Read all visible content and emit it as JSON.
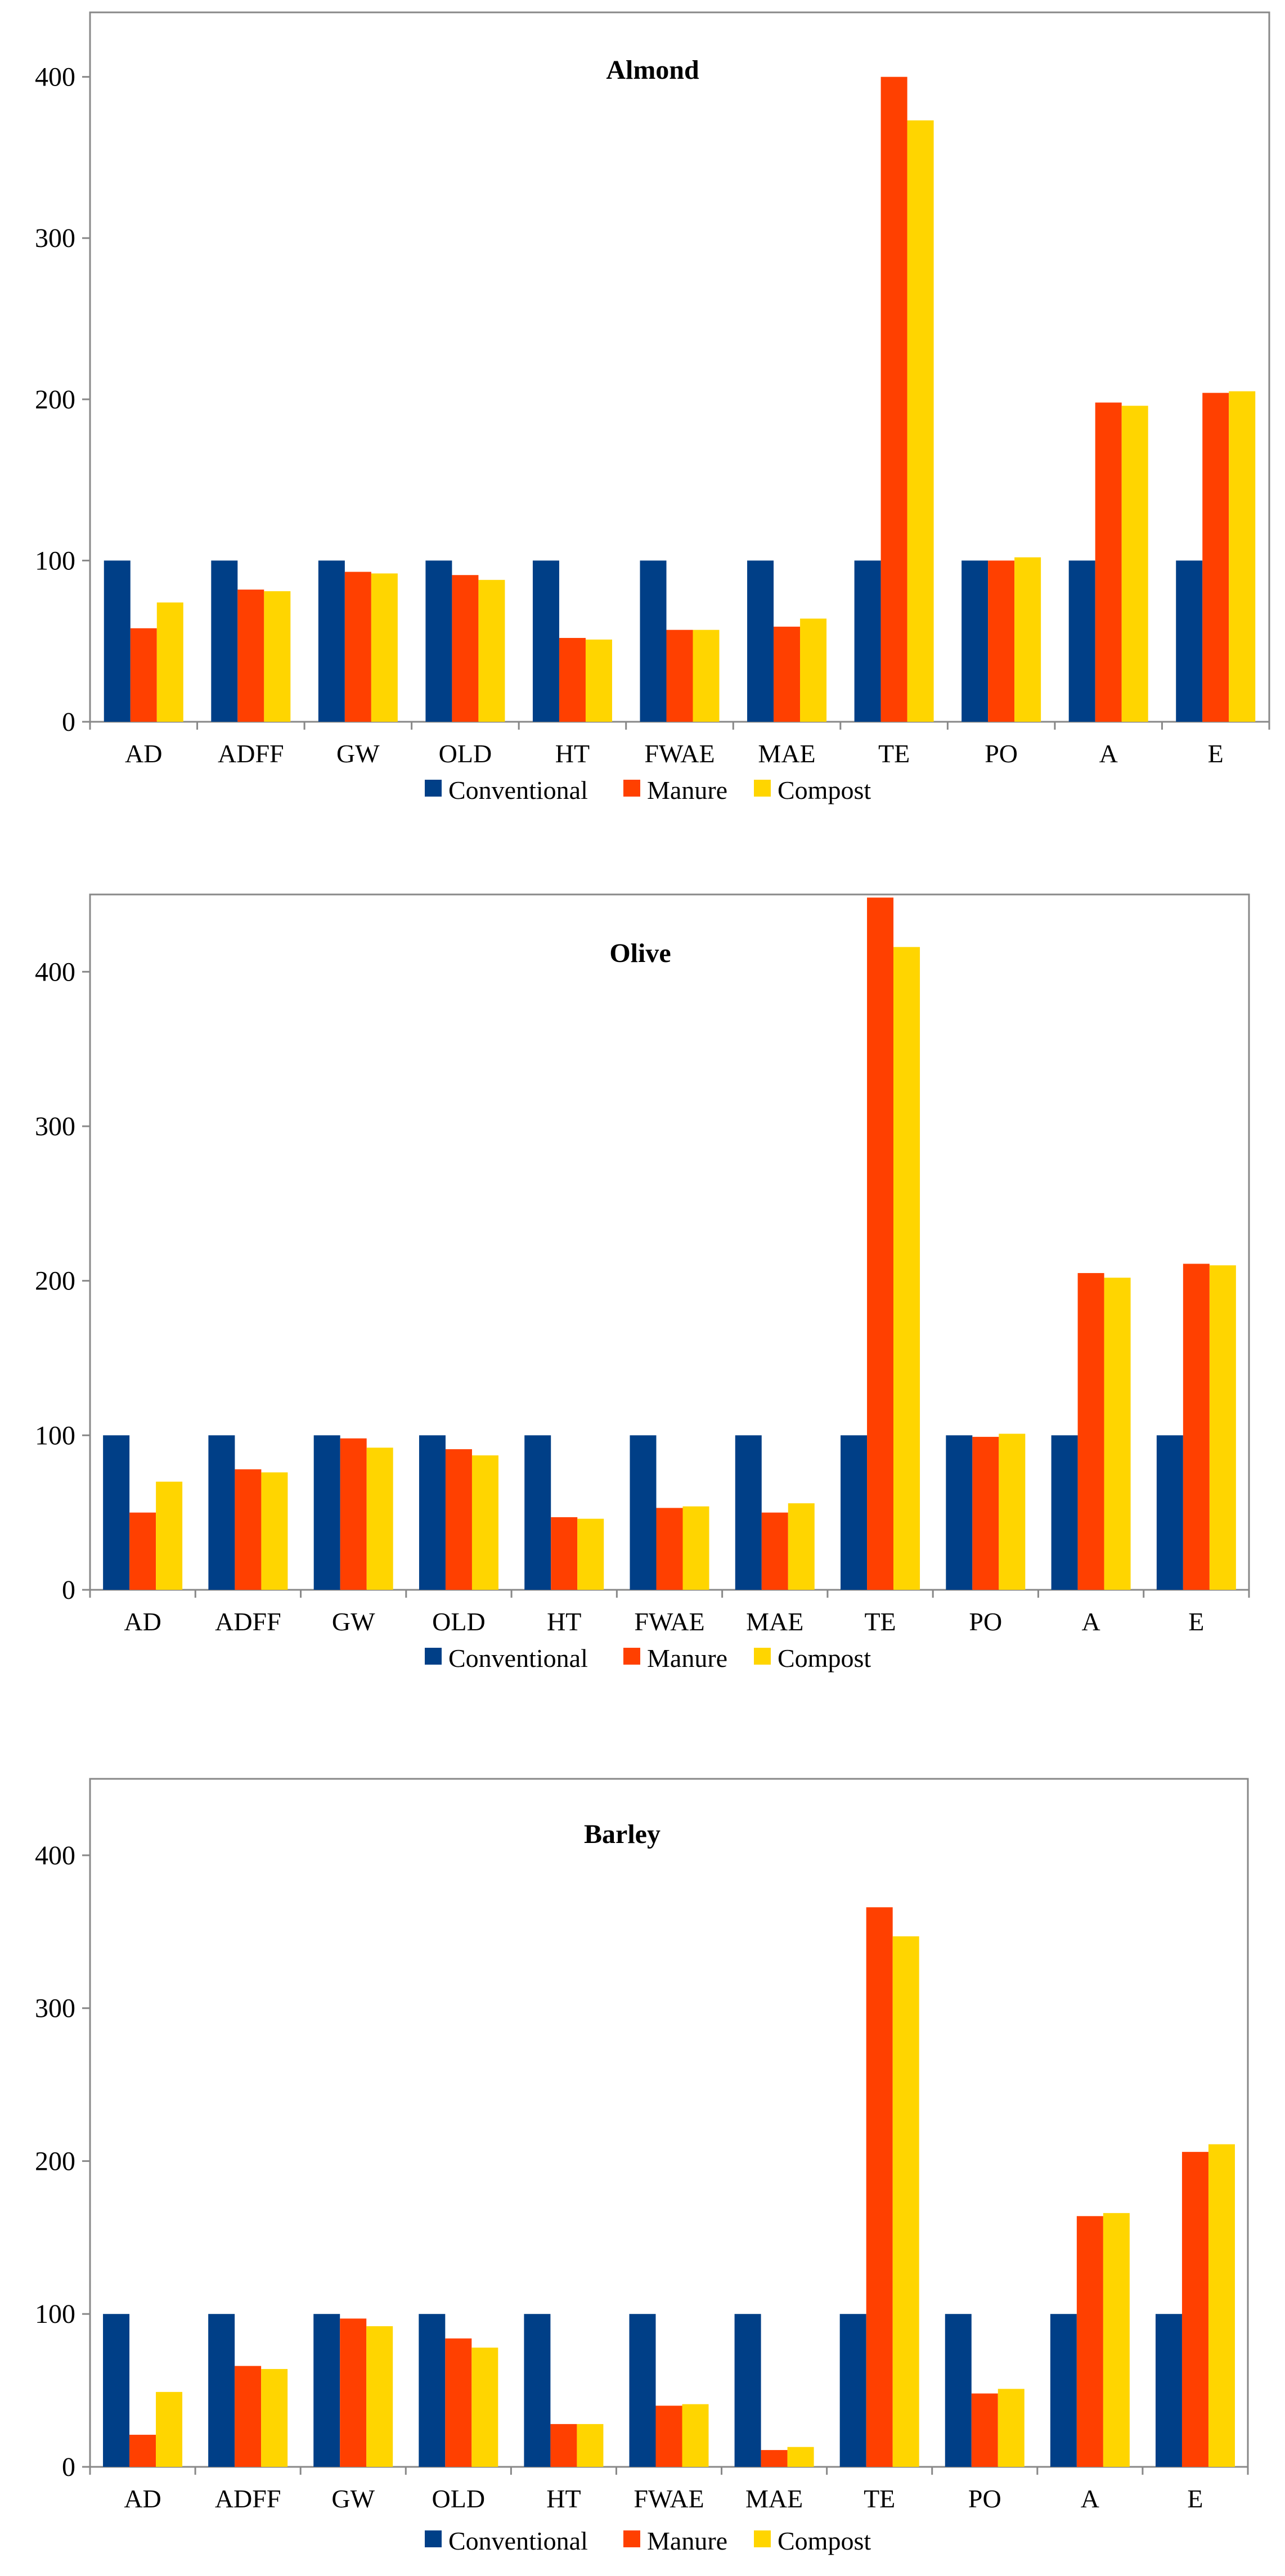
{
  "chart_data": [
    {
      "type": "bar",
      "title": "Almond",
      "xlabel": "",
      "ylabel": "",
      "ylim": [
        0,
        440
      ],
      "yticks": [
        0,
        100,
        200,
        300,
        400
      ],
      "grid": false,
      "legend_position": "bottom",
      "categories": [
        "AD",
        "ADFF",
        "GW",
        "OLD",
        "HT",
        "FWAE",
        "MAE",
        "TE",
        "PO",
        "A",
        "E"
      ],
      "series": [
        {
          "name": "Conventional",
          "color": "#003F87",
          "values": [
            100,
            100,
            100,
            100,
            100,
            100,
            100,
            100,
            100,
            100,
            100
          ]
        },
        {
          "name": "Manure",
          "color": "#FF4000",
          "values": [
            58,
            82,
            93,
            91,
            52,
            57,
            59,
            400,
            100,
            198,
            204
          ]
        },
        {
          "name": "Compost",
          "color": "#FFD500",
          "values": [
            74,
            81,
            92,
            88,
            51,
            57,
            64,
            373,
            102,
            196,
            205
          ]
        }
      ]
    },
    {
      "type": "bar",
      "title": "Olive",
      "xlabel": "",
      "ylabel": "",
      "ylim": [
        0,
        450
      ],
      "yticks": [
        0,
        100,
        200,
        300,
        400
      ],
      "grid": false,
      "legend_position": "bottom",
      "categories": [
        "AD",
        "ADFF",
        "GW",
        "OLD",
        "HT",
        "FWAE",
        "MAE",
        "TE",
        "PO",
        "A",
        "E"
      ],
      "series": [
        {
          "name": "Conventional",
          "color": "#003F87",
          "values": [
            100,
            100,
            100,
            100,
            100,
            100,
            100,
            100,
            100,
            100,
            100
          ]
        },
        {
          "name": "Manure",
          "color": "#FF4000",
          "values": [
            50,
            78,
            98,
            91,
            47,
            53,
            50,
            448,
            99,
            205,
            211
          ]
        },
        {
          "name": "Compost",
          "color": "#FFD500",
          "values": [
            70,
            76,
            92,
            87,
            46,
            54,
            56,
            416,
            101,
            202,
            210
          ]
        }
      ]
    },
    {
      "type": "bar",
      "title": "Barley",
      "xlabel": "",
      "ylabel": "",
      "ylim": [
        0,
        450
      ],
      "yticks": [
        0,
        100,
        200,
        300,
        400
      ],
      "grid": false,
      "legend_position": "bottom",
      "categories": [
        "AD",
        "ADFF",
        "GW",
        "OLD",
        "HT",
        "FWAE",
        "MAE",
        "TE",
        "PO",
        "A",
        "E"
      ],
      "series": [
        {
          "name": "Conventional",
          "color": "#003F87",
          "values": [
            100,
            100,
            100,
            100,
            100,
            100,
            100,
            100,
            100,
            100,
            100
          ]
        },
        {
          "name": "Manure",
          "color": "#FF4000",
          "values": [
            21,
            66,
            97,
            84,
            28,
            40,
            11,
            366,
            48,
            164,
            206
          ]
        },
        {
          "name": "Compost",
          "color": "#FFD500",
          "values": [
            49,
            64,
            92,
            78,
            28,
            41,
            13,
            347,
            51,
            166,
            211
          ]
        }
      ]
    }
  ]
}
